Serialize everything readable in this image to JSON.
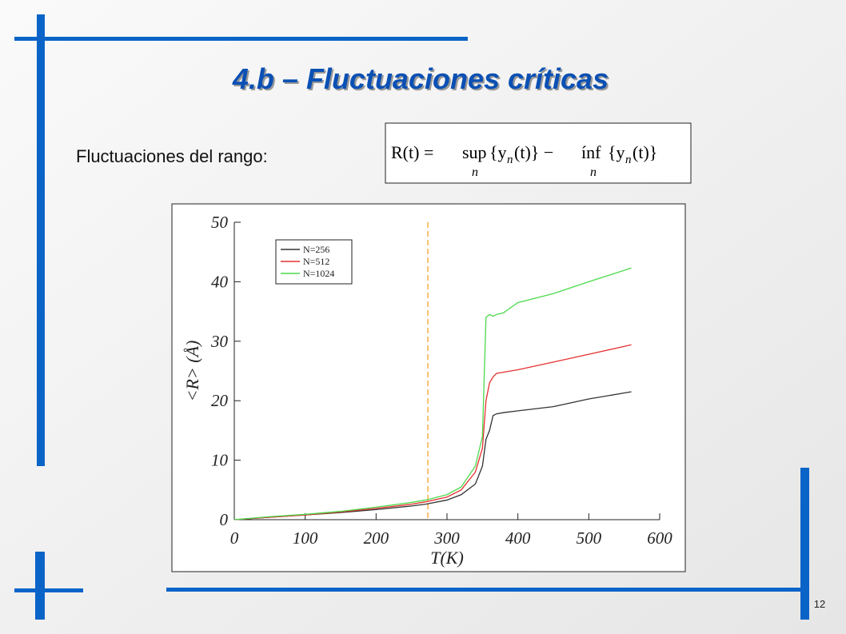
{
  "slide": {
    "title": "4.b – Fluctuaciones críticas",
    "text": "Fluctuaciones del rango:",
    "page_number": "12",
    "formula": [
      "R(t) =",
      "sup",
      "n",
      "{y",
      "n",
      "(t)} −",
      "ínf",
      "n",
      "{y",
      "n",
      "(t)}"
    ]
  },
  "chart_data": {
    "type": "line",
    "x_label": "T(K)",
    "y_label": "<R> (Å)",
    "xlim": [
      0,
      600
    ],
    "xticks": [
      0,
      100,
      200,
      300,
      400,
      500,
      600
    ],
    "ylim": [
      0,
      50
    ],
    "yticks": [
      0,
      10,
      20,
      30,
      40,
      50
    ],
    "vline": {
      "value": 273,
      "color": "#f5b041"
    },
    "x": [
      0,
      50,
      100,
      150,
      200,
      250,
      270,
      300,
      320,
      340,
      350,
      355,
      360,
      365,
      370,
      380,
      400,
      450,
      500,
      560
    ],
    "series": [
      {
        "name": "N=256",
        "color": "#333333",
        "values": [
          0,
          0.4,
          0.8,
          1.2,
          1.7,
          2.3,
          2.6,
          3.3,
          4.2,
          6,
          9,
          13.5,
          15,
          17.5,
          17.8,
          18,
          18.3,
          19,
          20.3,
          21.5
        ]
      },
      {
        "name": "N=512",
        "color": "#e53030",
        "values": [
          0,
          0.4,
          0.8,
          1.3,
          1.9,
          2.6,
          3,
          3.8,
          5,
          8,
          12,
          20,
          23,
          24,
          24.6,
          24.8,
          25.2,
          26.5,
          27.8,
          29.4
        ]
      },
      {
        "name": "N=1024",
        "color": "#4cd94c",
        "values": [
          0,
          0.5,
          0.9,
          1.4,
          2.1,
          2.9,
          3.3,
          4.2,
          5.5,
          9,
          14,
          34,
          34.5,
          34.2,
          34.5,
          34.8,
          36.5,
          38,
          40,
          42.3
        ]
      }
    ]
  }
}
